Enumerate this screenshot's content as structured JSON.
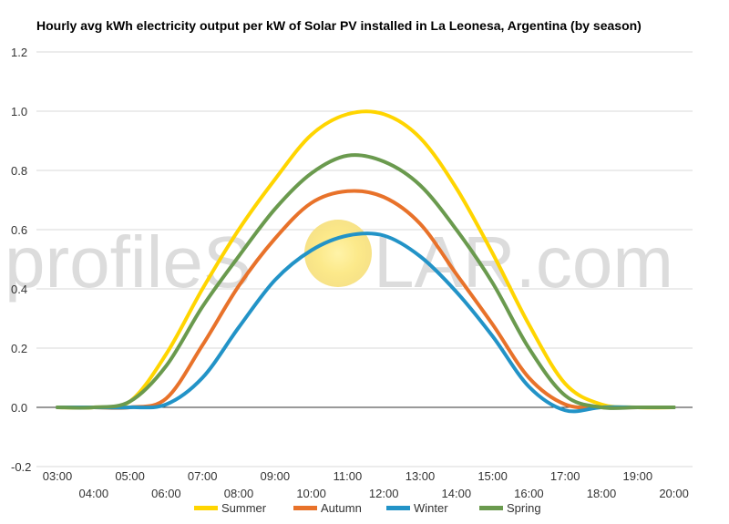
{
  "chart_data": {
    "type": "line",
    "title": "Hourly avg kWh electricity output per kW of Solar PV installed in La Leonesa, Argentina (by season)",
    "xlabel": "",
    "ylabel": "",
    "ylim": [
      -0.2,
      1.2
    ],
    "y_ticks": [
      "-0.2",
      "0.0",
      "0.2",
      "0.4",
      "0.6",
      "0.8",
      "1.0",
      "1.2"
    ],
    "x_ticks": [
      "03:00",
      "04:00",
      "05:00",
      "06:00",
      "07:00",
      "08:00",
      "09:00",
      "10:00",
      "11:00",
      "12:00",
      "13:00",
      "14:00",
      "15:00",
      "16:00",
      "17:00",
      "18:00",
      "19:00",
      "20:00"
    ],
    "grid": true,
    "legend_position": "bottom",
    "x": [
      "03:00",
      "04:00",
      "05:00",
      "06:00",
      "07:00",
      "08:00",
      "09:00",
      "10:00",
      "11:00",
      "12:00",
      "13:00",
      "14:00",
      "15:00",
      "16:00",
      "17:00",
      "18:00",
      "19:00",
      "20:00"
    ],
    "series": [
      {
        "name": "Summer",
        "color": "#FFD500",
        "values": [
          0,
          0,
          0.02,
          0.18,
          0.4,
          0.6,
          0.77,
          0.92,
          0.99,
          0.99,
          0.91,
          0.74,
          0.52,
          0.28,
          0.08,
          0.01,
          0,
          0
        ]
      },
      {
        "name": "Autumn",
        "color": "#E8722A",
        "values": [
          0,
          0,
          0,
          0.03,
          0.21,
          0.41,
          0.57,
          0.69,
          0.73,
          0.71,
          0.62,
          0.45,
          0.28,
          0.1,
          0.01,
          0,
          0,
          0
        ]
      },
      {
        "name": "Winter",
        "color": "#2293C7",
        "values": [
          0,
          0,
          0,
          0.01,
          0.1,
          0.27,
          0.43,
          0.53,
          0.58,
          0.58,
          0.51,
          0.39,
          0.24,
          0.07,
          -0.01,
          0,
          0,
          0
        ]
      },
      {
        "name": "Spring",
        "color": "#6A9A4E",
        "values": [
          0,
          0,
          0.02,
          0.14,
          0.34,
          0.51,
          0.67,
          0.79,
          0.85,
          0.83,
          0.75,
          0.6,
          0.42,
          0.2,
          0.04,
          0,
          0,
          0
        ]
      }
    ]
  },
  "watermark": {
    "left": "profileS",
    "sun": "O",
    "right": "LAR.com"
  }
}
